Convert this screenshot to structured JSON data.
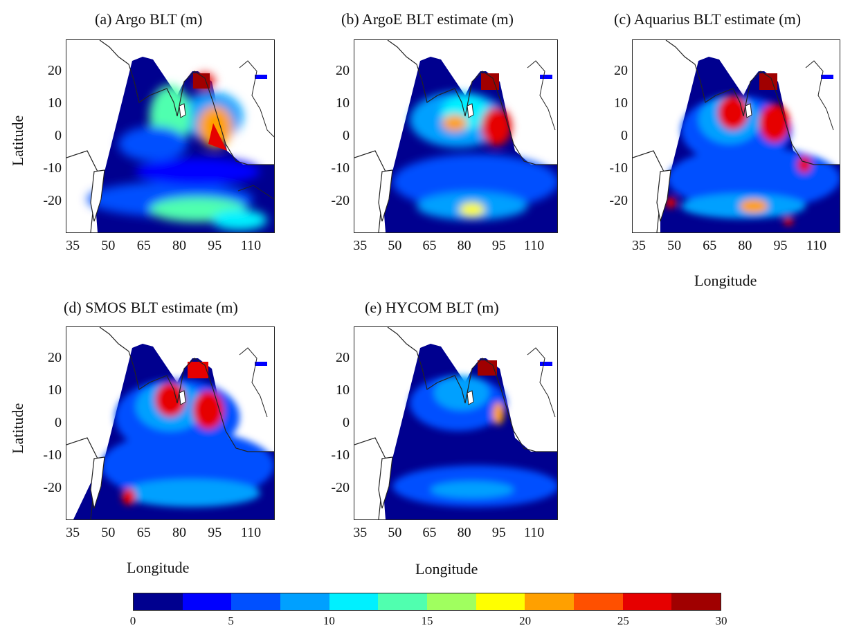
{
  "panels": [
    {
      "title": "(a) Argo BLT (m)",
      "ylabel": "Latitude",
      "xlabel": ""
    },
    {
      "title": "(b) ArgoE BLT estimate (m)",
      "ylabel": "",
      "xlabel": ""
    },
    {
      "title": "(c) Aquarius BLT estimate (m)",
      "ylabel": "",
      "xlabel": "Longitude"
    },
    {
      "title": "(d) SMOS BLT estimate (m)",
      "ylabel": "Latitude",
      "xlabel": "Longitude"
    },
    {
      "title": "(e) HYCOM BLT (m)",
      "ylabel": "",
      "xlabel": "Longitude"
    }
  ],
  "axes": {
    "lat_ticks": [
      "20",
      "10",
      "0",
      "-10",
      "-20"
    ],
    "lon_ticks": [
      "35",
      "50",
      "65",
      "80",
      "95",
      "110"
    ]
  },
  "colorbar": {
    "ticks": [
      "0",
      "5",
      "10",
      "15",
      "20",
      "25",
      "30"
    ],
    "colors": [
      "#00008f",
      "#0000ff",
      "#0050ff",
      "#00a0ff",
      "#00f0ff",
      "#50ffaf",
      "#a0ff5f",
      "#ffff00",
      "#ffa000",
      "#ff5000",
      "#e60000",
      "#a00000"
    ]
  }
}
